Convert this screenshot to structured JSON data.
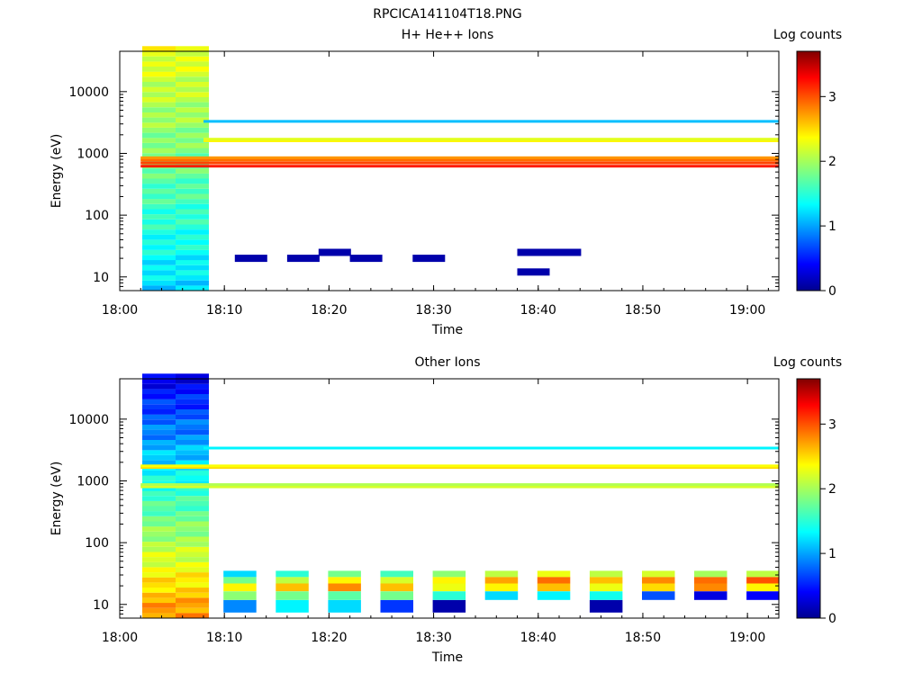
{
  "figure_title": "RPCICA141104T18.PNG",
  "panels": [
    {
      "id": "p1",
      "title": "H+ He++ Ions",
      "colorbar_label": "Log counts"
    },
    {
      "id": "p2",
      "title": "Other Ions",
      "colorbar_label": "Log counts"
    }
  ],
  "chart_data": [
    {
      "type": "heatmap",
      "title": "H+ He++ Ions",
      "xlabel": "Time",
      "ylabel": "Energy (eV)",
      "x_ticks": [
        "18:00",
        "18:10",
        "18:20",
        "18:30",
        "18:40",
        "18:50",
        "19:00"
      ],
      "y_ticks": [
        "10",
        "100",
        "1000",
        "10000"
      ],
      "y_scale": "log",
      "xlim": [
        "18:00",
        "19:03"
      ],
      "ylim": [
        6,
        45000
      ],
      "colorbar": {
        "label": "Log counts",
        "ticks": [
          "0",
          "1",
          "2",
          "3"
        ],
        "range": [
          0,
          3.7
        ],
        "colormap": "jet"
      },
      "series": [
        {
          "name": "",
          "x": [
            "18:02",
            "18:05"
          ],
          "profile": "dense_background",
          "level_low": 1.2,
          "level_high": 2.3
        },
        {
          "name": "",
          "energy_lines_eV": [
            620,
            700,
            780,
            850
          ],
          "level": 3.2,
          "span": [
            "18:02",
            "19:03"
          ]
        },
        {
          "name": "",
          "energy_lines_eV": [
            1600,
            1700
          ],
          "level": 2.4,
          "span": [
            "18:08",
            "19:03"
          ]
        },
        {
          "name": "",
          "energy_lines_eV": [
            3300
          ],
          "level": 1.1,
          "span": [
            "18:08",
            "19:03"
          ]
        },
        {
          "name": "",
          "sparse_low_counts": [
            {
              "t": "18:11",
              "e": 20
            },
            {
              "t": "18:16",
              "e": 20
            },
            {
              "t": "18:19",
              "e": 25
            },
            {
              "t": "18:22",
              "e": 20
            },
            {
              "t": "18:28",
              "e": 20
            },
            {
              "t": "18:38",
              "e": 25
            },
            {
              "t": "18:41",
              "e": 25
            },
            {
              "t": "18:38",
              "e": 12
            }
          ],
          "level": 0.1
        }
      ]
    },
    {
      "type": "heatmap",
      "title": "Other Ions",
      "xlabel": "Time",
      "ylabel": "Energy (eV)",
      "x_ticks": [
        "18:00",
        "18:10",
        "18:20",
        "18:30",
        "18:40",
        "18:50",
        "19:00"
      ],
      "y_ticks": [
        "10",
        "100",
        "1000",
        "10000"
      ],
      "y_scale": "log",
      "xlim": [
        "18:00",
        "19:03"
      ],
      "ylim": [
        6,
        45000
      ],
      "colorbar": {
        "label": "Log counts",
        "ticks": [
          "0",
          "1",
          "2",
          "3"
        ],
        "range": [
          0,
          3.7
        ],
        "colormap": "jet"
      },
      "series": [
        {
          "name": "",
          "x": [
            "18:02",
            "18:05"
          ],
          "profile": "dense_background",
          "level_low": 2.8,
          "level_high": 0.3
        },
        {
          "name": "",
          "energy_lines_eV": [
            800,
            870
          ],
          "level": 2.2,
          "span": [
            "18:02",
            "19:03"
          ]
        },
        {
          "name": "",
          "energy_lines_eV": [
            1650,
            1750
          ],
          "level": 2.5,
          "span": [
            "18:02",
            "19:03"
          ]
        },
        {
          "name": "",
          "energy_lines_eV": [
            3400
          ],
          "level": 1.3,
          "span": [
            "18:08",
            "19:03"
          ]
        },
        {
          "name": "",
          "low_energy_band": {
            "energies_eV": [
              10,
              14,
              19,
              25,
              31
            ],
            "times": [
              "18:10",
              "18:15",
              "18:20",
              "18:25",
              "18:30",
              "18:35",
              "18:40",
              "18:45",
              "18:50",
              "18:55",
              "19:00"
            ],
            "levels": [
              [
                0.9,
                1.3,
                1.2,
                0.6,
                0.1,
                null,
                null,
                0.1,
                null,
                null,
                null
              ],
              [
                1.9,
                1.8,
                1.7,
                1.8,
                1.5,
                1.2,
                1.3,
                1.4,
                0.7,
                0.3,
                0.4
              ],
              [
                2.4,
                2.6,
                2.8,
                2.6,
                2.3,
                2.4,
                2.6,
                2.3,
                2.5,
                2.8,
                2.4
              ],
              [
                1.8,
                2.1,
                2.4,
                2.2,
                2.4,
                2.7,
                2.9,
                2.6,
                2.8,
                2.9,
                3.0
              ],
              [
                1.2,
                1.5,
                1.8,
                1.6,
                1.9,
                2.1,
                2.3,
                2.1,
                2.2,
                2.0,
                2.1
              ]
            ]
          }
        }
      ]
    }
  ]
}
